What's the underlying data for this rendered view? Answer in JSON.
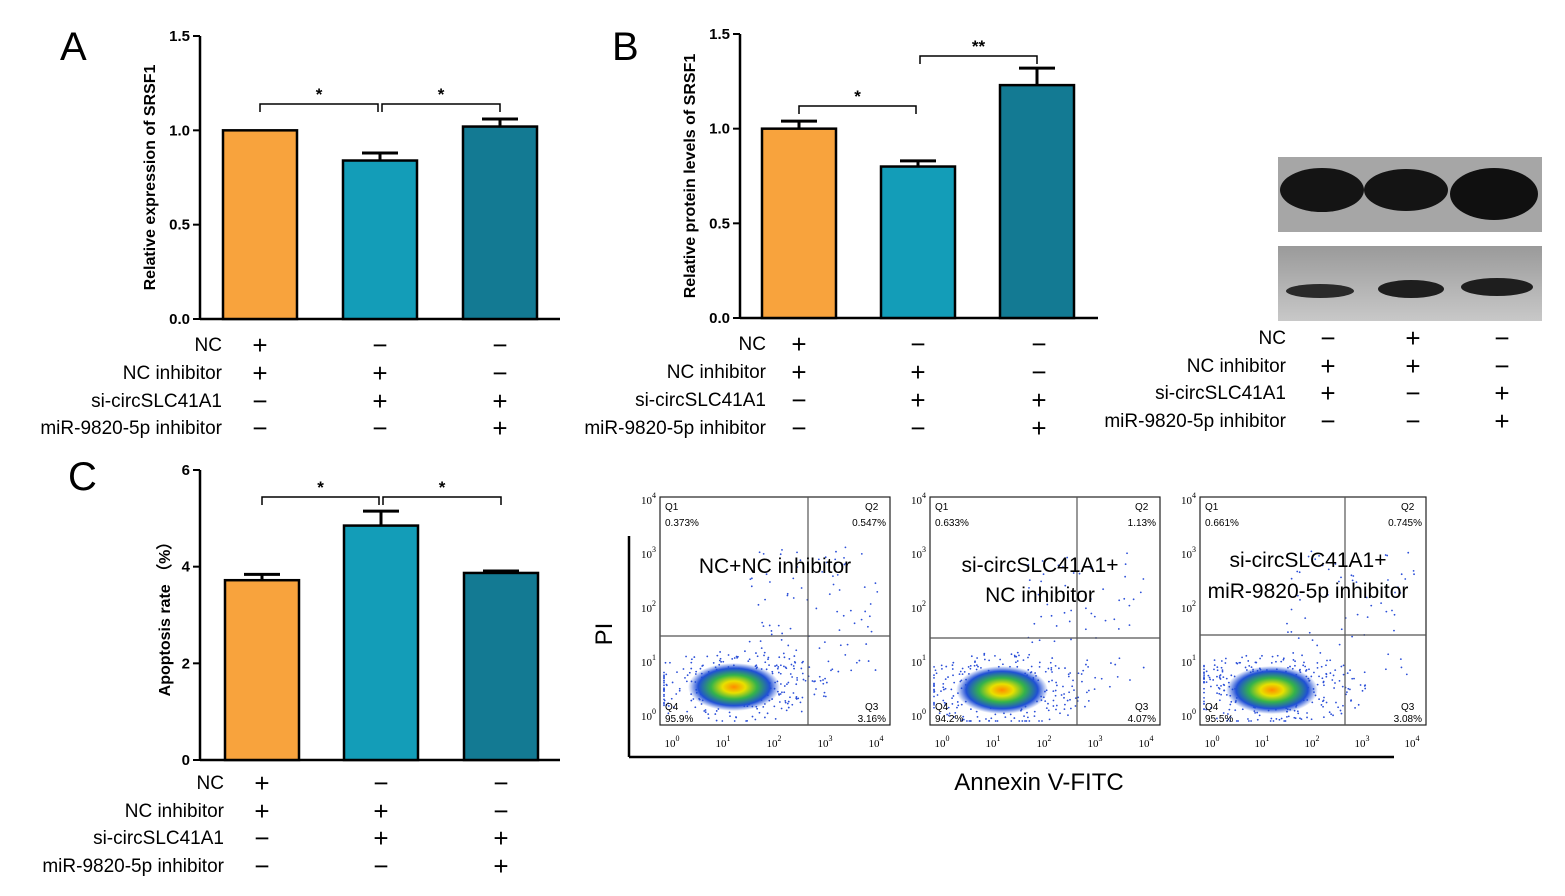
{
  "chart_data": [
    {
      "panel": "A",
      "type": "bar",
      "ylabel": "Relative expression of  SRSF1",
      "ylim": [
        0,
        1.5
      ],
      "yticks": [
        "0.0",
        "0.5",
        "1.0",
        "1.5"
      ],
      "values": [
        1.0,
        0.84,
        1.02
      ],
      "errors": [
        0.0,
        0.04,
        0.04
      ],
      "colors": [
        "#F8A33D",
        "#139DB8",
        "#137A93"
      ],
      "significance": [
        {
          "from": 0,
          "to": 1,
          "label": "*"
        },
        {
          "from": 1,
          "to": 2,
          "label": "*"
        }
      ],
      "conditions": [
        {
          "label": "NC",
          "signs": [
            "+",
            "−",
            "−"
          ]
        },
        {
          "label": "NC inhibitor",
          "signs": [
            "+",
            "+",
            "−"
          ]
        },
        {
          "label": "si-circSLC41A1",
          "signs": [
            "−",
            "+",
            "+"
          ]
        },
        {
          "label": "miR-9820-5p inhibitor",
          "signs": [
            "−",
            "−",
            "+"
          ]
        }
      ]
    },
    {
      "panel": "B",
      "type": "bar",
      "ylabel": "Relative protein levels of SRSF1",
      "ylim": [
        0,
        1.5
      ],
      "yticks": [
        "0.0",
        "0.5",
        "1.0",
        "1.5"
      ],
      "values": [
        1.0,
        0.8,
        1.23
      ],
      "errors": [
        0.04,
        0.03,
        0.09
      ],
      "colors": [
        "#F8A33D",
        "#139DB8",
        "#137A93"
      ],
      "significance": [
        {
          "from": 0,
          "to": 1,
          "label": "*"
        },
        {
          "from": 1,
          "to": 2,
          "label": "**"
        }
      ],
      "conditions": [
        {
          "label": "NC",
          "signs": [
            "+",
            "−",
            "−"
          ]
        },
        {
          "label": "NC inhibitor",
          "signs": [
            "+",
            "+",
            "−"
          ]
        },
        {
          "label": "si-circSLC41A1",
          "signs": [
            "−",
            "+",
            "+"
          ]
        },
        {
          "label": "miR-9820-5p inhibitor",
          "signs": [
            "−",
            "−",
            "+"
          ]
        }
      ]
    },
    {
      "panel": "C",
      "type": "bar",
      "ylabel": "Apoptosis rate （%）",
      "ylim": [
        0,
        6
      ],
      "yticks": [
        "0",
        "2",
        "4",
        "6"
      ],
      "values": [
        3.72,
        4.85,
        3.87
      ],
      "errors": [
        0.12,
        0.3,
        0.04
      ],
      "colors": [
        "#F8A33D",
        "#139DB8",
        "#137A93"
      ],
      "significance": [
        {
          "from": 0,
          "to": 1,
          "label": "*"
        },
        {
          "from": 1,
          "to": 2,
          "label": "*"
        }
      ],
      "conditions": [
        {
          "label": "NC",
          "signs": [
            "+",
            "−",
            "−"
          ]
        },
        {
          "label": "NC inhibitor",
          "signs": [
            "+",
            "+",
            "−"
          ]
        },
        {
          "label": "si-circSLC41A1",
          "signs": [
            "−",
            "+",
            "+"
          ]
        },
        {
          "label": "miR-9820-5p inhibitor",
          "signs": [
            "−",
            "−",
            "+"
          ]
        }
      ]
    }
  ],
  "western_blot": {
    "conditions": [
      {
        "label": "NC",
        "signs": [
          "−",
          "+",
          "−"
        ]
      },
      {
        "label": "NC inhibitor",
        "signs": [
          "+",
          "+",
          "−"
        ]
      },
      {
        "label": "si-circSLC41A1",
        "signs": [
          "+",
          "−",
          "+"
        ]
      },
      {
        "label": "miR-9820-5p inhibitor",
        "signs": [
          "−",
          "−",
          "+"
        ]
      }
    ]
  },
  "flow_cytometry": {
    "y_axis_label": "PI",
    "x_axis_label": "Annexin V-FITC",
    "tick_exponents": [
      "0",
      "1",
      "2",
      "3",
      "4"
    ],
    "plots": [
      {
        "title_lines": [
          "NC+NC inhibitor"
        ],
        "Q1": "0.373%",
        "Q2": "0.547%",
        "Q3": "3.16%",
        "Q4": "95.9%"
      },
      {
        "title_lines": [
          "si-circSLC41A1+",
          "NC inhibitor"
        ],
        "Q1": "0.633%",
        "Q2": "1.13%",
        "Q3": "4.07%",
        "Q4": "94.2%"
      },
      {
        "title_lines": [
          "si-circSLC41A1+",
          "miR-9820-5p inhibitor"
        ],
        "Q1": "0.661%",
        "Q2": "0.745%",
        "Q3": "3.08%",
        "Q4": "95.5%"
      }
    ]
  }
}
